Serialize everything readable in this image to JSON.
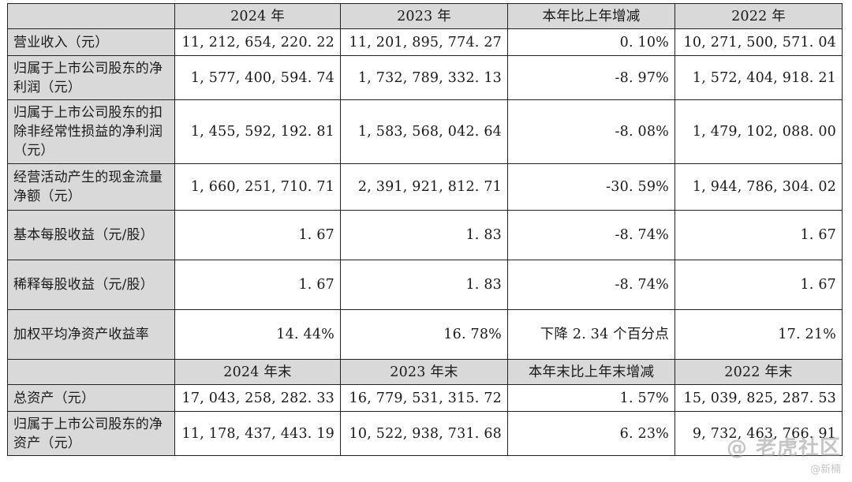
{
  "table": {
    "header1": [
      "",
      "2024 年",
      "2023 年",
      "本年比上年增减",
      "2022 年"
    ],
    "rows1": [
      {
        "label": "营业收入（元）",
        "values": [
          "11, 212, 654, 220. 22",
          "11, 201, 895, 774. 27",
          "0. 10%",
          "10, 271, 500, 571. 04"
        ]
      },
      {
        "label": "归属于上市公司股东的净利润（元）",
        "values": [
          "1, 577, 400, 594. 74",
          "1, 732, 789, 332. 13",
          "-8. 97%",
          "1, 572, 404, 918. 21"
        ]
      },
      {
        "label": "归属于上市公司股东的扣除非经常性损益的净利润（元）",
        "values": [
          "1, 455, 592, 192. 81",
          "1, 583, 568, 042. 64",
          "-8. 08%",
          "1, 479, 102, 088. 00"
        ]
      },
      {
        "label": "经营活动产生的现金流量净额（元）",
        "values": [
          "1, 660, 251, 710. 71",
          "2, 391, 921, 812. 71",
          "-30. 59%",
          "1, 944, 786, 304. 02"
        ]
      },
      {
        "label": "基本每股收益（元/股）",
        "values": [
          "1. 67",
          "1. 83",
          "-8. 74%",
          "1. 67"
        ]
      },
      {
        "label": "稀释每股收益（元/股）",
        "values": [
          "1. 67",
          "1. 83",
          "-8. 74%",
          "1. 67"
        ]
      },
      {
        "label": "加权平均净资产收益率",
        "values": [
          "14. 44%",
          "16. 78%",
          "下降 2. 34 个百分点",
          "17. 21%"
        ]
      }
    ],
    "header2": [
      "",
      "2024 年末",
      "2023 年末",
      "本年末比上年末增减",
      "2022 年末"
    ],
    "rows2": [
      {
        "label": "总资产（元）",
        "values": [
          "17, 043, 258, 282. 33",
          "16, 779, 531, 315. 72",
          "1. 57%",
          "15, 039, 825, 287. 53"
        ]
      },
      {
        "label": "归属于上市公司股东的净资产（元）",
        "values": [
          "11, 178, 437, 443. 19",
          "10, 522, 938, 731. 68",
          "6. 23%",
          "9, 732, 463, 766. 91"
        ]
      }
    ]
  },
  "watermark": {
    "main": "@ 老虎社区",
    "sub": "@新楠"
  }
}
